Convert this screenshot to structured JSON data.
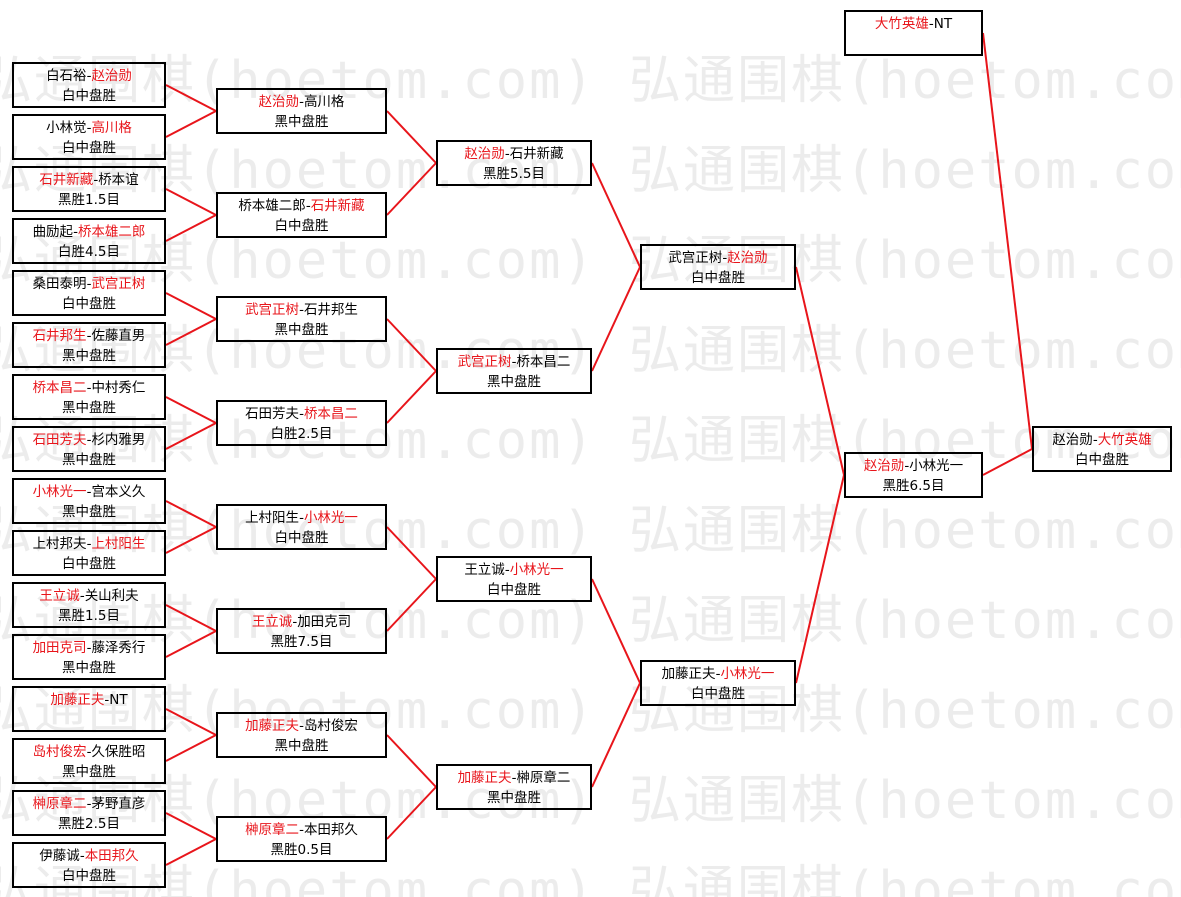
{
  "watermark": "弘通围棋(hoetom.com)",
  "colors": {
    "winner": "#e8151b",
    "line": "#e8151b",
    "border": "#000000",
    "watermark": "#ececec"
  },
  "rounds": [
    [
      {
        "players": [
          "白石裕",
          "赵治勋"
        ],
        "winner": 1,
        "result": "白中盘胜"
      },
      {
        "players": [
          "小林觉",
          "高川格"
        ],
        "winner": 1,
        "result": "白中盘胜"
      },
      {
        "players": [
          "石井新藏",
          "桥本谊"
        ],
        "winner": 0,
        "result": "黑胜1.5目"
      },
      {
        "players": [
          "曲励起",
          "桥本雄二郎"
        ],
        "winner": 1,
        "result": "白胜4.5目"
      },
      {
        "players": [
          "桑田泰明",
          "武宫正树"
        ],
        "winner": 1,
        "result": "白中盘胜"
      },
      {
        "players": [
          "石井邦生",
          "佐藤直男"
        ],
        "winner": 0,
        "result": "黑中盘胜"
      },
      {
        "players": [
          "桥本昌二",
          "中村秀仁"
        ],
        "winner": 0,
        "result": "黑中盘胜"
      },
      {
        "players": [
          "石田芳夫",
          "杉内雅男"
        ],
        "winner": 0,
        "result": "黑中盘胜"
      },
      {
        "players": [
          "小林光一",
          "宫本义久"
        ],
        "winner": 0,
        "result": "黑中盘胜"
      },
      {
        "players": [
          "上村邦夫",
          "上村阳生"
        ],
        "winner": 1,
        "result": "白中盘胜"
      },
      {
        "players": [
          "王立诚",
          "关山利夫"
        ],
        "winner": 0,
        "result": "黑胜1.5目"
      },
      {
        "players": [
          "加田克司",
          "藤泽秀行"
        ],
        "winner": 0,
        "result": "黑中盘胜"
      },
      {
        "players": [
          "加藤正夫",
          "NT"
        ],
        "winner": 0,
        "result": ""
      },
      {
        "players": [
          "岛村俊宏",
          "久保胜昭"
        ],
        "winner": 0,
        "result": "黑中盘胜"
      },
      {
        "players": [
          "榊原章二",
          "茅野直彦"
        ],
        "winner": 0,
        "result": "黑胜2.5目"
      },
      {
        "players": [
          "伊藤诚",
          "本田邦久"
        ],
        "winner": 1,
        "result": "白中盘胜"
      }
    ],
    [
      {
        "players": [
          "赵治勋",
          "高川格"
        ],
        "winner": 0,
        "result": "黑中盘胜"
      },
      {
        "players": [
          "桥本雄二郎",
          "石井新藏"
        ],
        "winner": 1,
        "result": "白中盘胜"
      },
      {
        "players": [
          "武宫正树",
          "石井邦生"
        ],
        "winner": 0,
        "result": "黑中盘胜"
      },
      {
        "players": [
          "石田芳夫",
          "桥本昌二"
        ],
        "winner": 1,
        "result": "白胜2.5目"
      },
      {
        "players": [
          "上村阳生",
          "小林光一"
        ],
        "winner": 1,
        "result": "白中盘胜"
      },
      {
        "players": [
          "王立诚",
          "加田克司"
        ],
        "winner": 0,
        "result": "黑胜7.5目"
      },
      {
        "players": [
          "加藤正夫",
          "岛村俊宏"
        ],
        "winner": 0,
        "result": "黑中盘胜"
      },
      {
        "players": [
          "榊原章二",
          "本田邦久"
        ],
        "winner": 0,
        "result": "黑胜0.5目"
      }
    ],
    [
      {
        "players": [
          "赵治勋",
          "石井新藏"
        ],
        "winner": 0,
        "result": "黑胜5.5目"
      },
      {
        "players": [
          "武宫正树",
          "桥本昌二"
        ],
        "winner": 0,
        "result": "黑中盘胜"
      },
      {
        "players": [
          "王立诚",
          "小林光一"
        ],
        "winner": 1,
        "result": "白中盘胜"
      },
      {
        "players": [
          "加藤正夫",
          "榊原章二"
        ],
        "winner": 0,
        "result": "黑中盘胜"
      }
    ],
    [
      {
        "players": [
          "武宫正树",
          "赵治勋"
        ],
        "winner": 1,
        "result": "白中盘胜"
      },
      {
        "players": [
          "加藤正夫",
          "小林光一"
        ],
        "winner": 1,
        "result": "白中盘胜"
      }
    ],
    [
      {
        "players": [
          "赵治勋",
          "小林光一"
        ],
        "winner": 0,
        "result": "黑胜6.5目"
      }
    ]
  ],
  "bye": {
    "players": [
      "大竹英雄",
      "NT"
    ],
    "winner": 0,
    "result": ""
  },
  "final": {
    "players": [
      "赵治勋",
      "大竹英雄"
    ],
    "winner": 1,
    "result": "白中盘胜"
  }
}
